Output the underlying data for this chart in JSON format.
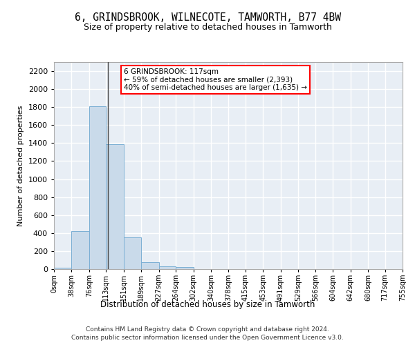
{
  "title": "6, GRINDSBROOK, WILNECOTE, TAMWORTH, B77 4BW",
  "subtitle": "Size of property relative to detached houses in Tamworth",
  "xlabel": "Distribution of detached houses by size in Tamworth",
  "ylabel": "Number of detached properties",
  "bar_color": "#c9daea",
  "bar_edge_color": "#7bafd4",
  "background_color": "#e8eef5",
  "grid_color": "#ffffff",
  "annotation_text": "6 GRINDSBROOK: 117sqm\n← 59% of detached houses are smaller (2,393)\n40% of semi-detached houses are larger (1,635) →",
  "annotation_box_color": "red",
  "property_size_sqm": 117,
  "bins": [
    0,
    38,
    76,
    113,
    151,
    189,
    227,
    264,
    302,
    340,
    378,
    415,
    453,
    491,
    529,
    566,
    604,
    642,
    680,
    717,
    755
  ],
  "bin_labels": [
    "0sqm",
    "38sqm",
    "76sqm",
    "113sqm",
    "151sqm",
    "189sqm",
    "227sqm",
    "264sqm",
    "302sqm",
    "340sqm",
    "378sqm",
    "415sqm",
    "453sqm",
    "491sqm",
    "529sqm",
    "566sqm",
    "604sqm",
    "642sqm",
    "680sqm",
    "717sqm",
    "755sqm"
  ],
  "bar_heights": [
    15,
    420,
    1810,
    1390,
    350,
    80,
    30,
    20,
    0,
    0,
    0,
    0,
    0,
    0,
    0,
    0,
    0,
    0,
    0,
    0
  ],
  "ylim": [
    0,
    2300
  ],
  "yticks": [
    0,
    200,
    400,
    600,
    800,
    1000,
    1200,
    1400,
    1600,
    1800,
    2000,
    2200
  ],
  "footer_line1": "Contains HM Land Registry data © Crown copyright and database right 2024.",
  "footer_line2": "Contains public sector information licensed under the Open Government Licence v3.0."
}
